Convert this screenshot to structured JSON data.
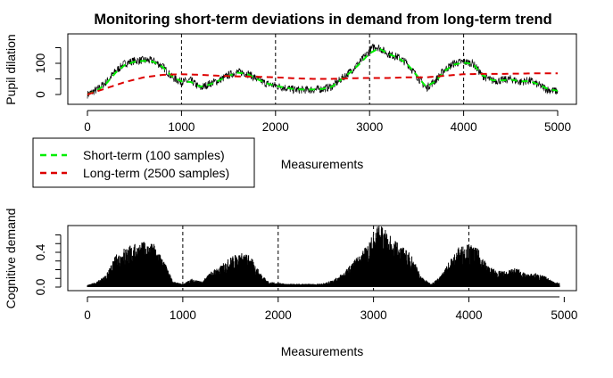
{
  "figure": {
    "title": "Monitoring short-term deviations in demand from long-term trend"
  },
  "chart_data": [
    {
      "type": "line",
      "xlabel": "Measurements",
      "ylabel": "Pupil dilation",
      "xlim": [
        0,
        5000
      ],
      "ylim": [
        -10,
        170
      ],
      "x_ticks": [
        "0",
        "1000",
        "2000",
        "3000",
        "4000",
        "5000"
      ],
      "y_ticks": [
        "0",
        "100"
      ],
      "vlines": [
        1000,
        2000,
        3000,
        4000
      ],
      "grid": false,
      "legend": {
        "placement": "bottom-left, outside plot",
        "entries": [
          {
            "label": "Short-term (100 samples)",
            "color": "#00ee00",
            "style": "dashed"
          },
          {
            "label": "Long-term (2500 samples)",
            "color": "#dd0000",
            "style": "dashed"
          }
        ]
      },
      "series": [
        {
          "color": "#000000",
          "style": "solid",
          "x": [
            0,
            100,
            200,
            300,
            400,
            500,
            600,
            700,
            800,
            900,
            1000,
            1100,
            1200,
            1300,
            1400,
            1500,
            1600,
            1700,
            1800,
            1900,
            2000,
            2100,
            2200,
            2300,
            2400,
            2500,
            2600,
            2700,
            2800,
            2900,
            3000,
            3050,
            3100,
            3200,
            3300,
            3400,
            3500,
            3600,
            3700,
            3800,
            3900,
            4000,
            4100,
            4200,
            4300,
            4400,
            4500,
            4600,
            4700,
            4800,
            4900,
            5000
          ],
          "values": [
            0,
            15,
            40,
            75,
            100,
            108,
            110,
            108,
            90,
            55,
            40,
            45,
            20,
            35,
            45,
            62,
            72,
            68,
            50,
            35,
            28,
            22,
            15,
            15,
            15,
            18,
            25,
            50,
            75,
            105,
            140,
            155,
            150,
            130,
            120,
            100,
            60,
            20,
            45,
            80,
            100,
            105,
            100,
            60,
            45,
            45,
            50,
            40,
            45,
            30,
            15,
            10
          ]
        },
        {
          "name": "Short-term (100 samples)",
          "color": "#00ee00",
          "style": "dashed",
          "x": [
            0,
            100,
            200,
            300,
            400,
            500,
            600,
            700,
            800,
            900,
            1000,
            1100,
            1200,
            1300,
            1400,
            1500,
            1600,
            1700,
            1800,
            1900,
            2000,
            2100,
            2200,
            2300,
            2400,
            2500,
            2600,
            2700,
            2800,
            2900,
            3000,
            3100,
            3200,
            3300,
            3400,
            3500,
            3600,
            3700,
            3800,
            3900,
            4000,
            4100,
            4200,
            4300,
            4400,
            4500,
            4600,
            4700,
            4800,
            4900,
            5000
          ],
          "values": [
            0,
            12,
            35,
            70,
            95,
            105,
            108,
            105,
            88,
            58,
            42,
            40,
            25,
            32,
            45,
            60,
            70,
            66,
            50,
            36,
            28,
            22,
            17,
            16,
            16,
            18,
            25,
            48,
            72,
            100,
            132,
            148,
            130,
            118,
            98,
            62,
            25,
            42,
            76,
            96,
            102,
            98,
            62,
            46,
            45,
            48,
            42,
            43,
            32,
            17,
            12
          ]
        },
        {
          "name": "Long-term (2500 samples)",
          "color": "#dd0000",
          "style": "dashed",
          "x": [
            0,
            200,
            400,
            600,
            800,
            1000,
            1200,
            1400,
            1600,
            1800,
            2000,
            2200,
            2400,
            2600,
            2800,
            3000,
            3200,
            3400,
            3600,
            3800,
            4000,
            4200,
            4400,
            4600,
            4800,
            5000
          ],
          "values": [
            0,
            20,
            40,
            55,
            63,
            65,
            63,
            60,
            58,
            57,
            55,
            52,
            50,
            50,
            52,
            53,
            53,
            55,
            55,
            60,
            65,
            66,
            66,
            67,
            68,
            68
          ]
        }
      ]
    },
    {
      "type": "bar",
      "xlabel": "Measurements",
      "ylabel": "Cognitive demand",
      "xlim": [
        0,
        5000
      ],
      "ylim": [
        0,
        0.6
      ],
      "x_ticks": [
        "0",
        "1000",
        "2000",
        "3000",
        "4000",
        "5000"
      ],
      "y_ticks": [
        "0.0",
        "0.4"
      ],
      "vlines": [
        1000,
        2000,
        3000,
        4000
      ],
      "grid": false,
      "series": [
        {
          "color": "#000000",
          "x": [
            0,
            100,
            200,
            300,
            400,
            500,
            600,
            700,
            800,
            900,
            1000,
            1100,
            1200,
            1300,
            1400,
            1500,
            1600,
            1700,
            1800,
            1900,
            2000,
            2100,
            2200,
            2300,
            2400,
            2500,
            2600,
            2700,
            2800,
            2900,
            3000,
            3050,
            3100,
            3200,
            3300,
            3400,
            3500,
            3600,
            3700,
            3800,
            3900,
            4000,
            4100,
            4200,
            4300,
            4400,
            4500,
            4600,
            4700,
            4800,
            4900,
            4950
          ],
          "values": [
            0.02,
            0.05,
            0.12,
            0.3,
            0.38,
            0.4,
            0.42,
            0.4,
            0.25,
            0.05,
            0.03,
            0.08,
            0.05,
            0.15,
            0.2,
            0.28,
            0.32,
            0.3,
            0.15,
            0.05,
            0.04,
            0.03,
            0.03,
            0.03,
            0.03,
            0.04,
            0.08,
            0.15,
            0.25,
            0.35,
            0.5,
            0.58,
            0.55,
            0.45,
            0.38,
            0.3,
            0.1,
            0.03,
            0.1,
            0.25,
            0.38,
            0.4,
            0.35,
            0.2,
            0.15,
            0.15,
            0.18,
            0.12,
            0.13,
            0.1,
            0.05,
            0.04
          ]
        }
      ]
    }
  ]
}
